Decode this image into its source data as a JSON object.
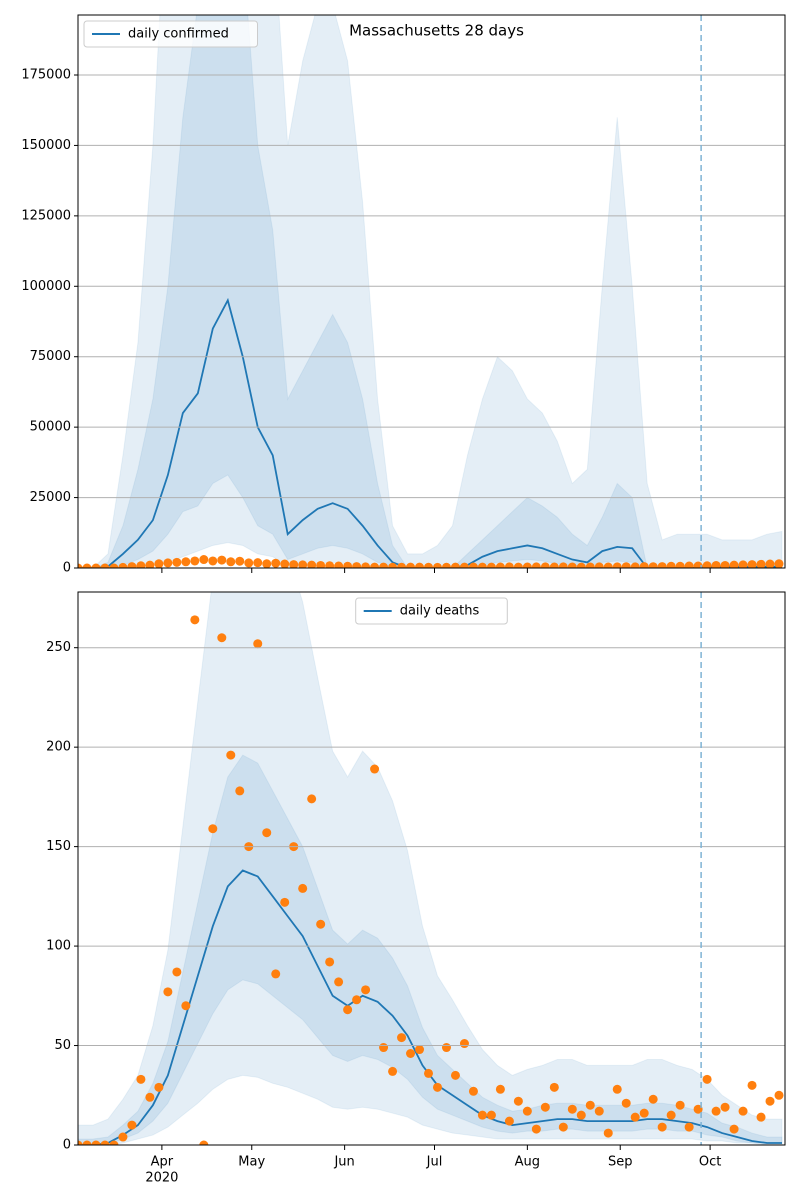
{
  "chart_data": [
    {
      "type": "line",
      "title": "Massachusetts 28 days",
      "legend": "upper left",
      "grid": true,
      "xlim": [
        64,
        300
      ],
      "xticks": [
        92,
        122,
        153,
        183,
        214,
        245,
        275
      ],
      "vline": 272,
      "ylim": [
        0,
        196300
      ],
      "yticks": [
        0,
        25000,
        50000,
        75000,
        100000,
        125000,
        150000,
        175000
      ],
      "x": [
        64,
        69,
        74,
        79,
        84,
        89,
        94,
        99,
        104,
        109,
        114,
        119,
        124,
        129,
        134,
        139,
        144,
        149,
        154,
        159,
        164,
        169,
        174,
        179,
        184,
        189,
        194,
        199,
        204,
        209,
        214,
        219,
        224,
        229,
        234,
        239,
        244,
        249,
        254,
        259,
        264,
        269,
        274,
        279,
        284,
        289,
        294,
        299
      ],
      "series": [
        {
          "name": "daily confirmed",
          "color": "#1f77b4",
          "values": [
            0,
            0,
            500,
            5000,
            10000,
            17000,
            33000,
            55000,
            62000,
            85000,
            95000,
            75000,
            50000,
            40000,
            12000,
            17000,
            21000,
            23000,
            21000,
            15000,
            8000,
            2000,
            0,
            0,
            0,
            0,
            1000,
            4000,
            6000,
            7000,
            8000,
            7000,
            5000,
            3000,
            2000,
            6000,
            7500,
            7000,
            0,
            0,
            0,
            0,
            500,
            500,
            500,
            500,
            500,
            500
          ]
        }
      ],
      "bands": [
        {
          "color": "#1f77b4",
          "upper": [
            0,
            0,
            5000,
            40000,
            80000,
            150000,
            250000,
            350000,
            400000,
            400000,
            400000,
            350000,
            280000,
            230000,
            150000,
            180000,
            200000,
            200000,
            180000,
            130000,
            60000,
            15000,
            5000,
            5000,
            8000,
            15000,
            40000,
            60000,
            75000,
            70000,
            60000,
            55000,
            45000,
            30000,
            35000,
            100000,
            160000,
            100000,
            30000,
            10000,
            12000,
            12000,
            12000,
            10000,
            10000,
            10000,
            12000,
            13000
          ],
          "lower": [
            0,
            0,
            0,
            0,
            500,
            1000,
            2000,
            4000,
            6000,
            8000,
            9000,
            8000,
            5000,
            4000,
            500,
            1000,
            1500,
            2000,
            1500,
            1000,
            200,
            0,
            0,
            0,
            0,
            0,
            0,
            100,
            200,
            300,
            300,
            300,
            200,
            100,
            100,
            300,
            400,
            300,
            0,
            0,
            0,
            0,
            0,
            0,
            0,
            0,
            0,
            0
          ]
        },
        {
          "color": "#1f77b4",
          "upper": [
            0,
            0,
            2000,
            15000,
            35000,
            60000,
            100000,
            160000,
            200000,
            250000,
            260000,
            220000,
            150000,
            120000,
            60000,
            70000,
            80000,
            90000,
            80000,
            60000,
            30000,
            8000,
            0,
            0,
            0,
            0,
            5000,
            10000,
            15000,
            20000,
            25000,
            22000,
            18000,
            12000,
            8000,
            18000,
            30000,
            25000,
            0,
            0,
            0,
            0,
            1500,
            1500,
            1500,
            1500,
            1500,
            1500
          ],
          "lower": [
            0,
            0,
            0,
            1000,
            3000,
            6000,
            12000,
            20000,
            22000,
            30000,
            33000,
            25000,
            15000,
            12000,
            3000,
            5000,
            7000,
            8000,
            7000,
            5000,
            2000,
            500,
            0,
            0,
            0,
            0,
            200,
            1000,
            2000,
            2500,
            3000,
            2500,
            1500,
            1000,
            500,
            2000,
            2500,
            2000,
            0,
            0,
            0,
            0,
            100,
            100,
            100,
            100,
            100,
            100
          ]
        }
      ],
      "scatter": {
        "color": "#ff7f0e",
        "x": [
          64,
          67,
          70,
          73,
          76,
          79,
          82,
          85,
          88,
          91,
          94,
          97,
          100,
          103,
          106,
          109,
          112,
          115,
          118,
          121,
          124,
          127,
          130,
          133,
          136,
          139,
          142,
          145,
          148,
          151,
          154,
          157,
          160,
          163,
          166,
          169,
          172,
          175,
          178,
          181,
          184,
          187,
          190,
          193,
          196,
          199,
          202,
          205,
          208,
          211,
          214,
          217,
          220,
          223,
          226,
          229,
          232,
          235,
          238,
          241,
          244,
          247,
          250,
          253,
          256,
          259,
          262,
          265,
          268,
          271,
          274,
          277,
          280,
          283,
          286,
          289,
          292,
          295,
          298
        ],
        "values": [
          0,
          0,
          0,
          0,
          0,
          200,
          500,
          800,
          1000,
          1500,
          1800,
          2000,
          2200,
          2500,
          3000,
          2500,
          2800,
          2200,
          2400,
          1800,
          1900,
          1500,
          1700,
          1400,
          1200,
          1100,
          1000,
          900,
          800,
          700,
          600,
          500,
          400,
          300,
          300,
          250,
          250,
          300,
          300,
          250,
          200,
          250,
          300,
          300,
          350,
          300,
          300,
          350,
          400,
          300,
          350,
          400,
          400,
          350,
          400,
          350,
          300,
          350,
          400,
          350,
          400,
          450,
          400,
          500,
          450,
          500,
          600,
          600,
          700,
          700,
          800,
          900,
          900,
          1000,
          1100,
          1200,
          1300,
          1400,
          1500
        ]
      }
    },
    {
      "type": "line",
      "legend": "upper center",
      "grid": true,
      "xlim": [
        64,
        300
      ],
      "xticks": [
        {
          "value": 92,
          "label": "Apr",
          "sublabel": "2020"
        },
        {
          "value": 122,
          "label": "May"
        },
        {
          "value": 153,
          "label": "Jun"
        },
        {
          "value": 183,
          "label": "Jul"
        },
        {
          "value": 214,
          "label": "Aug"
        },
        {
          "value": 245,
          "label": "Sep"
        },
        {
          "value": 275,
          "label": "Oct"
        }
      ],
      "vline": 272,
      "ylim": [
        0,
        278
      ],
      "yticks": [
        0,
        50,
        100,
        150,
        200,
        250
      ],
      "x": [
        64,
        69,
        74,
        79,
        84,
        89,
        94,
        99,
        104,
        109,
        114,
        119,
        124,
        129,
        134,
        139,
        144,
        149,
        154,
        159,
        164,
        169,
        174,
        179,
        184,
        189,
        194,
        199,
        204,
        209,
        214,
        219,
        224,
        229,
        234,
        239,
        244,
        249,
        254,
        259,
        264,
        269,
        274,
        279,
        284,
        289,
        294,
        299
      ],
      "series": [
        {
          "name": "daily deaths",
          "color": "#1f77b4",
          "values": [
            0,
            0,
            1,
            5,
            10,
            20,
            35,
            60,
            85,
            110,
            130,
            138,
            135,
            125,
            115,
            105,
            90,
            75,
            70,
            75,
            72,
            65,
            55,
            40,
            30,
            25,
            20,
            15,
            12,
            10,
            11,
            12,
            13,
            13,
            12,
            12,
            12,
            12,
            13,
            13,
            12,
            11,
            9,
            6,
            4,
            2,
            1,
            1
          ]
        }
      ],
      "bands": [
        {
          "color": "#1f77b4",
          "upper": [
            10,
            10,
            13,
            23,
            35,
            60,
            98,
            160,
            223,
            285,
            335,
            355,
            348,
            323,
            298,
            273,
            235,
            198,
            185,
            198,
            190,
            173,
            148,
            110,
            85,
            73,
            60,
            48,
            40,
            35,
            38,
            40,
            43,
            43,
            40,
            40,
            40,
            40,
            43,
            43,
            40,
            38,
            33,
            25,
            20,
            15,
            13,
            13
          ],
          "lower": [
            0,
            0,
            0,
            1,
            3,
            5,
            9,
            15,
            21,
            28,
            33,
            35,
            34,
            31,
            29,
            26,
            23,
            19,
            18,
            19,
            18,
            16,
            14,
            10,
            8,
            6,
            5,
            4,
            3,
            3,
            3,
            3,
            3,
            3,
            3,
            3,
            3,
            3,
            3,
            3,
            3,
            3,
            2,
            2,
            1,
            1,
            0,
            0
          ]
        },
        {
          "color": "#1f77b4",
          "upper": [
            3,
            3,
            4,
            10,
            17,
            31,
            52,
            87,
            122,
            157,
            185,
            196,
            192,
            178,
            164,
            150,
            129,
            108,
            101,
            108,
            104,
            94,
            80,
            59,
            45,
            38,
            31,
            24,
            20,
            17,
            18,
            20,
            21,
            21,
            20,
            20,
            20,
            20,
            21,
            21,
            20,
            18,
            16,
            11,
            9,
            6,
            4,
            4
          ],
          "lower": [
            0,
            0,
            0,
            3,
            6,
            12,
            21,
            36,
            51,
            66,
            78,
            83,
            81,
            75,
            69,
            63,
            54,
            45,
            42,
            45,
            43,
            39,
            33,
            24,
            18,
            15,
            12,
            9,
            7,
            6,
            7,
            7,
            8,
            8,
            7,
            7,
            7,
            7,
            8,
            8,
            7,
            7,
            5,
            4,
            2,
            1,
            1,
            1
          ]
        }
      ],
      "scatter": {
        "color": "#ff7f0e",
        "x": [
          64,
          67,
          70,
          73,
          76,
          79,
          82,
          85,
          88,
          91,
          94,
          97,
          100,
          103,
          106,
          109,
          112,
          115,
          118,
          121,
          124,
          127,
          130,
          133,
          136,
          139,
          142,
          145,
          148,
          151,
          154,
          157,
          160,
          163,
          166,
          169,
          172,
          175,
          178,
          181,
          184,
          187,
          190,
          193,
          196,
          199,
          202,
          205,
          208,
          211,
          214,
          217,
          220,
          223,
          226,
          229,
          232,
          235,
          238,
          241,
          244,
          247,
          250,
          253,
          256,
          259,
          262,
          265,
          268,
          271,
          274,
          277,
          280,
          283,
          286,
          289,
          292,
          295,
          298
        ],
        "values": [
          0,
          0,
          0,
          0,
          0,
          4,
          10,
          33,
          24,
          29,
          77,
          87,
          70,
          264,
          0,
          159,
          255,
          196,
          178,
          150,
          252,
          157,
          86,
          122,
          150,
          129,
          174,
          111,
          92,
          82,
          68,
          73,
          78,
          189,
          49,
          37,
          54,
          46,
          48,
          36,
          29,
          49,
          35,
          51,
          27,
          15,
          15,
          28,
          12,
          22,
          17,
          8,
          19,
          29,
          9,
          18,
          15,
          20,
          17,
          6,
          28,
          21,
          14,
          16,
          23,
          9,
          15,
          20,
          9,
          18,
          33,
          17,
          19,
          8,
          17,
          30,
          14,
          22,
          25
        ]
      }
    }
  ]
}
